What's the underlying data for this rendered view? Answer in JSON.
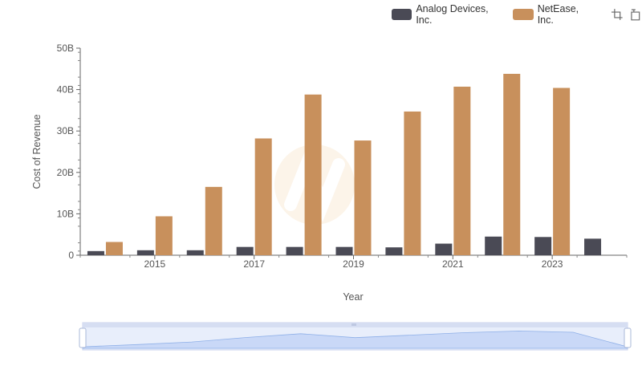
{
  "chart_data": {
    "type": "bar",
    "xlabel": "Year",
    "ylabel": "Cost of Revenue",
    "ylim": [
      0,
      50000000000
    ],
    "y_ticks": [
      "0",
      "10B",
      "20B",
      "30B",
      "40B",
      "50B"
    ],
    "x_tick_labels": [
      "2015",
      "2017",
      "2019",
      "2021",
      "2023"
    ],
    "categories": [
      "2014",
      "2015",
      "2016",
      "2017",
      "2018",
      "2019",
      "2020",
      "2021",
      "2022",
      "2023",
      "2024"
    ],
    "series": [
      {
        "name": "Analog Devices, Inc.",
        "color": "#4a4a55",
        "values": [
          1000000000,
          1200000000,
          1200000000,
          2000000000,
          2000000000,
          2000000000,
          1900000000,
          2800000000,
          4500000000,
          4400000000,
          4000000000
        ]
      },
      {
        "name": "NetEase, Inc.",
        "color": "#c8905c",
        "values": [
          3200000000,
          9400000000,
          16500000000,
          28200000000,
          38800000000,
          27700000000,
          34700000000,
          40700000000,
          43800000000,
          40400000000,
          null
        ]
      }
    ],
    "legend_position": "top-right",
    "grid": false
  },
  "toolbar": {
    "icons": [
      "zoom-icon",
      "restore-icon"
    ]
  }
}
